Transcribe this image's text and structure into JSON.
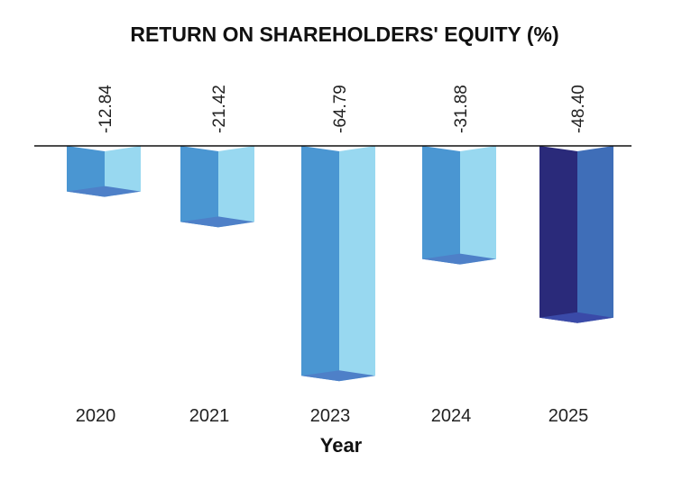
{
  "chart_data": {
    "type": "bar",
    "title": "RETURN ON SHAREHOLDERS' EQUITY (%)",
    "xlabel": "Year",
    "ylabel": "",
    "categories": [
      "2020",
      "2021",
      "2023",
      "2024",
      "2025"
    ],
    "values": [
      -12.84,
      -21.42,
      -64.79,
      -31.88,
      -48.4
    ],
    "value_labels": [
      "-12.84",
      "-21.42",
      "-64.79",
      "-31.88",
      "-48.40"
    ],
    "ylim": [
      -70,
      0
    ],
    "grid": false,
    "legend": "none",
    "style": "3d-column",
    "colors": {
      "default_front": "#4a96d2",
      "default_side": "#98d8f0",
      "default_bottom": "#4e80c8",
      "highlight_front": "#2a2a7a",
      "highlight_side": "#3f6eb8",
      "highlight_bottom": "#3a4aa8",
      "highlight_index": 4,
      "axis": "#111111"
    }
  }
}
